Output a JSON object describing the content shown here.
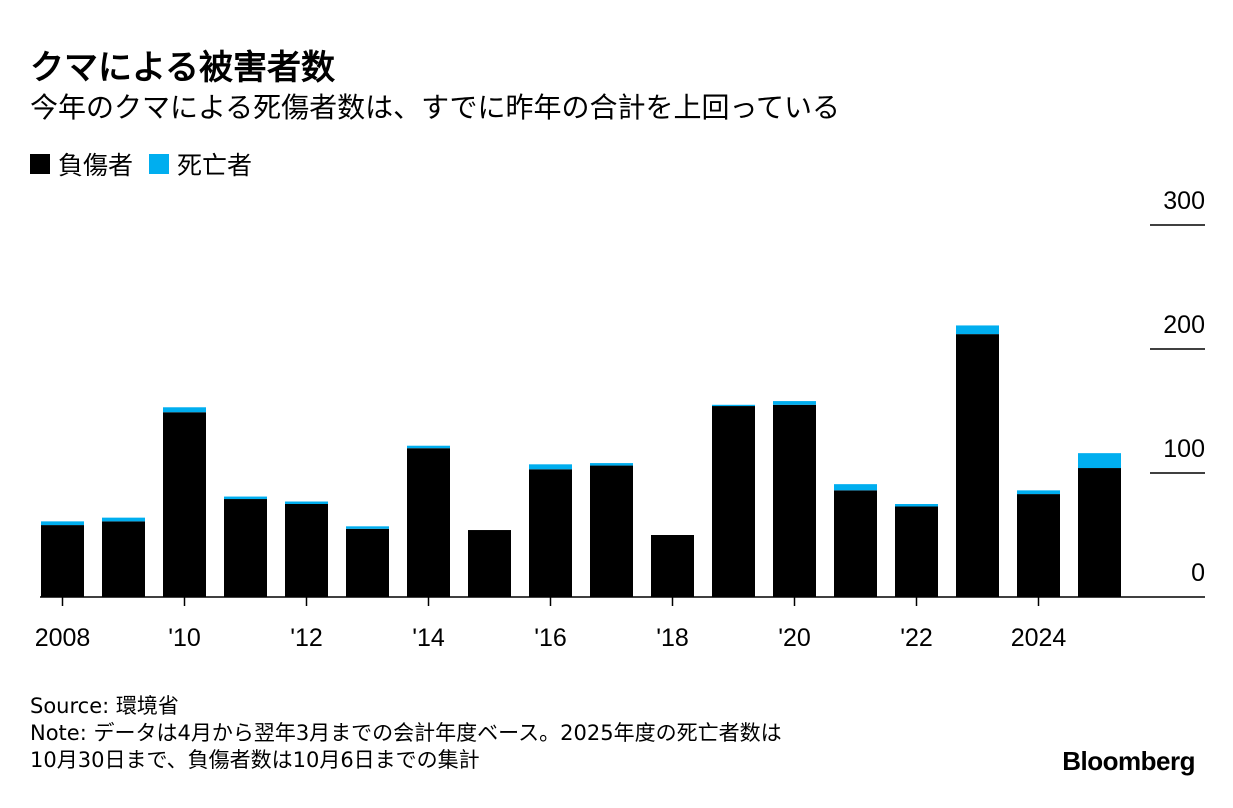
{
  "chart_data": {
    "type": "bar",
    "stacked": true,
    "title": "クマによる被害者数",
    "subtitle": "今年のクマによる死傷者数は、すでに昨年の合計を上回っている",
    "categories": [
      "2008",
      "2009",
      "2010",
      "2011",
      "2012",
      "2013",
      "2014",
      "2015",
      "2016",
      "2017",
      "2018",
      "2019",
      "2020",
      "2021",
      "2022",
      "2023",
      "2024",
      "2025"
    ],
    "series": [
      {
        "name": "負傷者",
        "color": "#000000",
        "values": [
          58,
          61,
          149,
          79,
          75,
          55,
          120,
          54,
          103,
          106,
          50,
          154,
          155,
          86,
          73,
          212,
          83,
          104
        ]
      },
      {
        "name": "死亡者",
        "color": "#00aeef",
        "values": [
          3,
          3,
          4,
          2,
          2,
          2,
          2,
          0,
          4,
          2,
          0,
          1,
          3,
          5,
          2,
          7,
          3,
          12
        ]
      }
    ],
    "ylim": [
      0,
      300
    ],
    "yticks": [
      "300",
      "200",
      "100",
      "0"
    ],
    "ytick_values": [
      300,
      200,
      100,
      0
    ],
    "xtick_labels": [
      "2008",
      "'10",
      "'12",
      "'14",
      "'16",
      "'18",
      "'20",
      "'22",
      "2024"
    ],
    "xtick_indices": [
      0,
      2,
      4,
      6,
      8,
      10,
      12,
      14,
      16
    ],
    "xlabel": "",
    "ylabel": ""
  },
  "legend": {
    "injured_label": "負傷者",
    "deaths_label": "死亡者",
    "injured_color": "#000000",
    "deaths_color": "#00aeef"
  },
  "footer": {
    "source": "Source: 環境省",
    "note_line1": "Note: データは4月から翌年3月までの会計年度ベース。2025年度の死亡者数は",
    "note_line2": "10月30日まで、負傷者数は10月6日までの集計"
  },
  "brand": "Bloomberg"
}
